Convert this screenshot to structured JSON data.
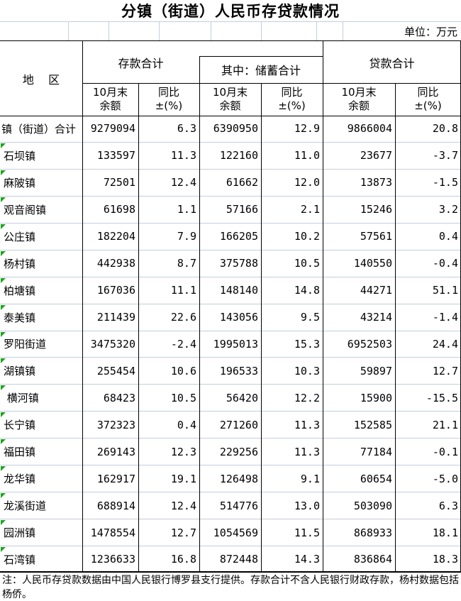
{
  "title": "分镇（街道）人民币存贷款情况",
  "unit_label": "单位：万元",
  "colors": {
    "border_dark": "#000000",
    "grid_light": "#c3cedf",
    "indicator_green": "#1fa31f"
  },
  "table": {
    "region_header": "地    区",
    "group_headers": {
      "deposit_total": "存款合计",
      "savings_total": "其中：储蓄合计",
      "loan_total": "贷款合计"
    },
    "sub_headers": {
      "balance_top": "10月末",
      "balance_bottom": "余额",
      "yoy_top": "同比",
      "yoy_bottom": "±(%)"
    },
    "columns": [
      "地区",
      "存款10月末余额",
      "存款同比±(%)",
      "储蓄10月末余额",
      "储蓄同比±(%)",
      "贷款10月末余额",
      "贷款同比±(%)"
    ],
    "rows": [
      {
        "region": "镇（街道）合计",
        "indicator": false,
        "values": [
          "9279094",
          "6.3",
          "6390950",
          "12.9",
          "9866004",
          "20.8"
        ]
      },
      {
        "region": "石坝镇",
        "indicator": true,
        "values": [
          "133597",
          "11.3",
          "122160",
          "11.0",
          "23677",
          "-3.7"
        ]
      },
      {
        "region": "麻陂镇",
        "indicator": true,
        "values": [
          "72501",
          "12.4",
          "61662",
          "12.0",
          "13873",
          "-1.5"
        ]
      },
      {
        "region": "观音阁镇",
        "indicator": true,
        "values": [
          "61698",
          "1.1",
          "57166",
          "2.1",
          "15246",
          "3.2"
        ]
      },
      {
        "region": "公庄镇",
        "indicator": true,
        "values": [
          "182204",
          "7.9",
          "166205",
          "10.2",
          "57561",
          "0.4"
        ]
      },
      {
        "region": "杨村镇",
        "indicator": true,
        "values": [
          "442938",
          "8.7",
          "375788",
          "10.5",
          "140550",
          "-0.4"
        ]
      },
      {
        "region": "柏塘镇",
        "indicator": true,
        "values": [
          "167036",
          "11.1",
          "148140",
          "14.8",
          "44271",
          "51.1"
        ]
      },
      {
        "region": "泰美镇",
        "indicator": true,
        "values": [
          "211439",
          "22.6",
          "143056",
          "9.5",
          "43214",
          "-1.4"
        ]
      },
      {
        "region": "罗阳街道",
        "indicator": true,
        "values": [
          "3475320",
          "-2.4",
          "1995013",
          "15.3",
          "6952503",
          "24.4"
        ]
      },
      {
        "region": "湖镇镇",
        "indicator": true,
        "values": [
          "255454",
          "10.6",
          "196533",
          "10.3",
          "59897",
          "12.7"
        ]
      },
      {
        "region": " 横河镇",
        "indicator": true,
        "values": [
          "68423",
          "10.5",
          "56420",
          "12.2",
          "15900",
          "-15.5"
        ]
      },
      {
        "region": "长宁镇",
        "indicator": true,
        "values": [
          "372323",
          "0.4",
          "271260",
          "11.3",
          "152585",
          "21.1"
        ]
      },
      {
        "region": "福田镇",
        "indicator": true,
        "values": [
          "269143",
          "12.3",
          "229256",
          "11.3",
          "77184",
          "-0.1"
        ]
      },
      {
        "region": "龙华镇",
        "indicator": true,
        "values": [
          "162917",
          "19.1",
          "126498",
          "9.1",
          "60654",
          "-5.0"
        ]
      },
      {
        "region": "龙溪街道",
        "indicator": true,
        "values": [
          "688914",
          "12.4",
          "514776",
          "13.0",
          "503090",
          "6.3"
        ]
      },
      {
        "region": "园洲镇",
        "indicator": true,
        "values": [
          "1478554",
          "12.7",
          "1054569",
          "11.5",
          "868933",
          "18.1"
        ]
      },
      {
        "region": "石湾镇",
        "indicator": true,
        "values": [
          "1236633",
          "16.8",
          "872448",
          "14.3",
          "836864",
          "18.3"
        ]
      }
    ]
  },
  "footnote": "注：人民币存贷款数据由中国人民银行博罗县支行提供。存款合计不含人民银行财政存款，杨村数据包括杨侨。"
}
